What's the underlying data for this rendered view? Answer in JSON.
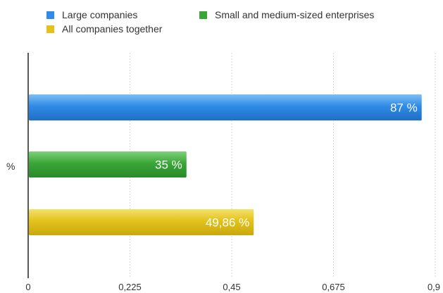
{
  "chart_data": {
    "type": "bar",
    "orientation": "horizontal",
    "category_label": "%",
    "xlim": [
      0,
      0.9
    ],
    "xticks": [
      "0",
      "0,225",
      "0,45",
      "0,675",
      "0,9"
    ],
    "grid": true,
    "legend_position": "top",
    "series": [
      {
        "name": "Large companies",
        "value": 0.87,
        "label": "87 %",
        "color": "#2f8be6"
      },
      {
        "name": "Small and medium-sized enterprises",
        "value": 0.35,
        "label": "35 %",
        "color": "#3aa638"
      },
      {
        "name": "All companies together",
        "value": 0.4986,
        "label": "49,86 %",
        "color": "#e3c21b"
      }
    ]
  }
}
